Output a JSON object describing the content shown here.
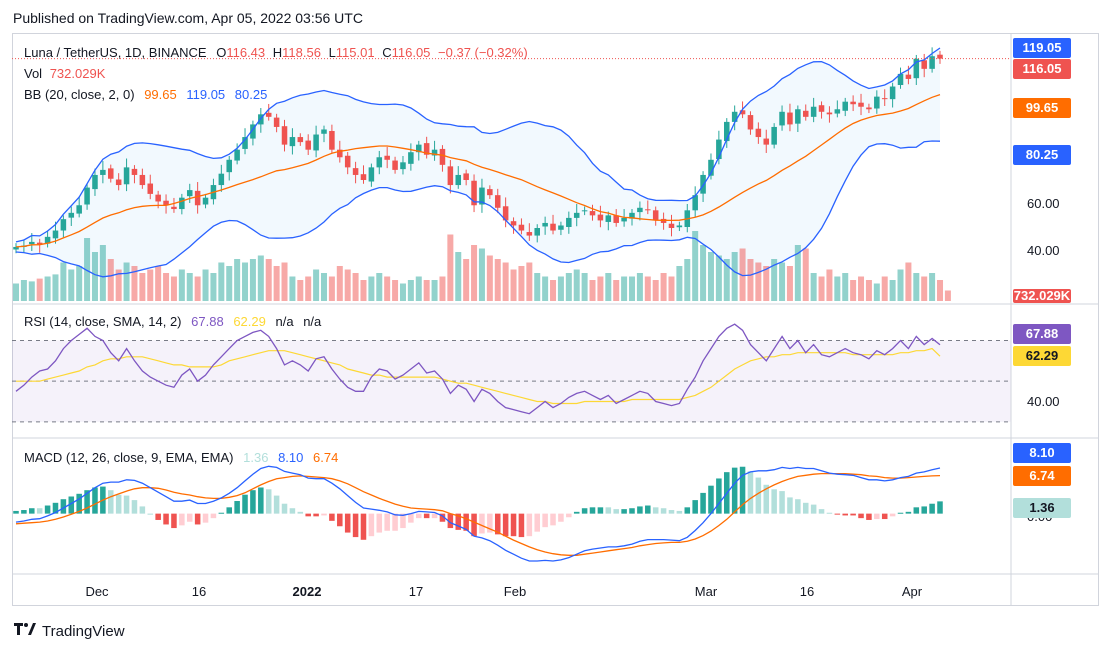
{
  "published": "Published on TradingView.com, Apr 05, 2022 03:56 UTC",
  "legend": {
    "symbol": "Luna / TetherUS, 1D, BINANCE",
    "o_label": "O",
    "o_val": "116.43",
    "h_label": "H",
    "h_val": "118.56",
    "l_label": "L",
    "l_val": "115.01",
    "c_label": "C",
    "c_val": "116.05",
    "change": "−0.37 (−0.32%)",
    "vol_label": "Vol",
    "vol_val": "732.029K",
    "bb_label": "BB (20, close, 2, 0)",
    "bb_mid": "99.65",
    "bb_up": "119.05",
    "bb_low": "80.25",
    "rsi_label": "RSI (14, close, SMA, 14, 2)",
    "rsi_val": "67.88",
    "rsi_ma": "62.29",
    "rsi_na1": "n/a",
    "rsi_na2": "n/a",
    "macd_label": "MACD (12, 26, close, 9, EMA, EMA)",
    "macd_hist": "1.36",
    "macd_val": "8.10",
    "macd_sig": "6.74"
  },
  "price_axis": [
    "60.00",
    "40.00"
  ],
  "rsi_axis": [
    "40.00"
  ],
  "macd_axis_partial": "0.00",
  "tags": {
    "bb_up": "119.05",
    "close": "116.05",
    "bb_mid": "99.65",
    "bb_low": "80.25",
    "vol": "732.029K",
    "rsi": "67.88",
    "rsi_ma": "62.29",
    "macd": "8.10",
    "signal": "6.74",
    "hist": "1.36"
  },
  "x_labels": [
    "Dec",
    "16",
    "2022",
    "17",
    "Feb",
    "Mar",
    "16",
    "Apr"
  ],
  "brand": "TradingView",
  "colors": {
    "up": "#26a69a",
    "down": "#ef5350",
    "bb_band": "#2962ff",
    "bb_basis": "#ff6d00",
    "rsi": "#7e57c2",
    "rsi_ma": "#fdd835",
    "macd": "#2962ff",
    "signal": "#ff6d00",
    "hist_up": "#26a69a",
    "hist_down": "#ef5350"
  },
  "chart_data": [
    {
      "type": "candlestick",
      "title": "Luna / TetherUS, 1D, BINANCE",
      "x_start": "2021-11-20",
      "x_end": "2022-04-05",
      "ylim": [
        30,
        125
      ],
      "closes": [
        41.5,
        42,
        43.5,
        42.5,
        45.5,
        48,
        52.5,
        55,
        58,
        65,
        70,
        72,
        68.5,
        66,
        73,
        70,
        66,
        62.5,
        59.5,
        58,
        56.5,
        61,
        64,
        58,
        61,
        66,
        70.5,
        76,
        80,
        85,
        90,
        94,
        93,
        89,
        82,
        85,
        83,
        80,
        86,
        88,
        80,
        77,
        73,
        70,
        68,
        73,
        77,
        76,
        72,
        75,
        79,
        82,
        78,
        80,
        74,
        66,
        70,
        68,
        58,
        65,
        62,
        57,
        52,
        50,
        48,
        46,
        49,
        51,
        48,
        50,
        53,
        55,
        56,
        54,
        52,
        54,
        51,
        53,
        55,
        57,
        56,
        52,
        51,
        49,
        50,
        56,
        62,
        70,
        76,
        84,
        91,
        95,
        94,
        88,
        85,
        82,
        89,
        95,
        90,
        96,
        93,
        97,
        95,
        94,
        96,
        99,
        98,
        97,
        96,
        101,
        100,
        105,
        110,
        108,
        116,
        112,
        117,
        116.05
      ],
      "volume_rel": [
        0.25,
        0.3,
        0.28,
        0.32,
        0.35,
        0.38,
        0.55,
        0.45,
        0.5,
        0.9,
        0.7,
        0.8,
        0.6,
        0.45,
        0.55,
        0.5,
        0.4,
        0.45,
        0.5,
        0.4,
        0.35,
        0.45,
        0.4,
        0.35,
        0.45,
        0.4,
        0.55,
        0.5,
        0.6,
        0.55,
        0.6,
        0.65,
        0.6,
        0.5,
        0.55,
        0.35,
        0.3,
        0.35,
        0.45,
        0.4,
        0.35,
        0.5,
        0.45,
        0.4,
        0.3,
        0.35,
        0.4,
        0.35,
        0.3,
        0.25,
        0.3,
        0.35,
        0.3,
        0.3,
        0.35,
        0.95,
        0.7,
        0.6,
        0.8,
        0.75,
        0.65,
        0.6,
        0.55,
        0.45,
        0.5,
        0.55,
        0.4,
        0.35,
        0.3,
        0.35,
        0.4,
        0.45,
        0.4,
        0.3,
        0.35,
        0.4,
        0.3,
        0.35,
        0.35,
        0.4,
        0.35,
        0.3,
        0.4,
        0.35,
        0.5,
        0.6,
        1.0,
        0.8,
        0.7,
        0.65,
        0.6,
        0.7,
        0.75,
        0.6,
        0.55,
        0.5,
        0.6,
        0.55,
        0.5,
        0.8,
        0.75,
        0.4,
        0.35,
        0.45,
        0.35,
        0.4,
        0.3,
        0.35,
        0.3,
        0.25,
        0.35,
        0.3,
        0.45,
        0.55,
        0.4,
        0.35,
        0.4,
        0.3,
        0.15
      ]
    },
    {
      "type": "line",
      "title": "RSI (14, close, SMA, 14, 2)",
      "ylim": [
        25,
        85
      ],
      "levels": [
        70,
        50,
        30
      ],
      "series": [
        {
          "name": "RSI",
          "values": [
            45,
            48,
            52,
            55,
            56,
            60,
            66,
            70,
            73,
            76,
            72,
            70,
            64,
            60,
            66,
            60,
            55,
            52,
            50,
            48,
            47,
            53,
            56,
            50,
            53,
            58,
            62,
            66,
            70,
            72,
            74,
            75,
            72,
            66,
            58,
            60,
            58,
            55,
            61,
            62,
            56,
            51,
            47,
            45,
            45,
            52,
            56,
            55,
            51,
            53,
            56,
            59,
            54,
            55,
            51,
            44,
            48,
            46,
            40,
            46,
            44,
            40,
            37,
            36,
            35,
            34,
            37,
            40,
            37,
            39,
            42,
            44,
            45,
            43,
            41,
            43,
            39,
            41,
            43,
            45,
            44,
            40,
            39,
            38,
            39,
            46,
            52,
            60,
            66,
            72,
            76,
            78,
            75,
            68,
            64,
            60,
            66,
            72,
            66,
            70,
            64,
            68,
            63,
            62,
            64,
            66,
            64,
            63,
            61,
            65,
            63,
            66,
            70,
            66,
            72,
            68,
            71,
            67.88
          ]
        },
        {
          "name": "MA",
          "values": [
            50,
            50,
            50,
            50,
            51,
            52,
            53,
            54,
            55,
            57,
            58,
            60,
            61,
            61,
            62,
            62,
            62,
            61,
            60,
            59,
            58,
            58,
            57,
            57,
            57,
            57,
            58,
            60,
            61,
            62,
            63,
            64,
            65,
            65,
            65,
            64,
            63,
            62,
            61,
            60,
            59,
            58,
            56,
            55,
            54,
            53,
            53,
            52,
            52,
            52,
            52,
            52,
            52,
            52,
            51,
            50,
            49,
            49,
            48,
            47,
            46,
            45,
            44,
            43,
            42,
            41,
            40,
            40,
            39,
            39,
            39,
            39,
            40,
            40,
            40,
            40,
            40,
            40,
            41,
            41,
            41,
            41,
            41,
            41,
            41,
            42,
            43,
            45,
            47,
            50,
            53,
            56,
            58,
            60,
            61,
            62,
            62,
            63,
            63,
            64,
            64,
            64,
            64,
            64,
            64,
            64,
            63,
            63,
            63,
            63,
            63,
            63,
            64,
            64,
            65,
            65,
            66,
            62.29
          ]
        }
      ]
    },
    {
      "type": "line",
      "title": "MACD (12, 26, close, 9, EMA, EMA)",
      "ylim": [
        -10,
        12
      ],
      "series": [
        {
          "name": "MACD",
          "values": [
            -1.5,
            -1.3,
            -1,
            -0.9,
            -0.4,
            0.2,
            1,
            1.8,
            2.6,
            3.6,
            4.6,
            5.4,
            5.6,
            5.6,
            6,
            5.9,
            5.4,
            4.6,
            3.8,
            3,
            2.2,
            2.2,
            2.4,
            1.8,
            1.8,
            2.2,
            2.8,
            3.6,
            4.6,
            5.8,
            7,
            8,
            8.4,
            8.2,
            7.5,
            7.2,
            6.9,
            6.3,
            6.2,
            6.2,
            5.4,
            4.4,
            3.2,
            2,
            1,
            0.8,
            0.6,
            0.3,
            -0.2,
            -0.3,
            0,
            0.4,
            0.3,
            0.2,
            -0.4,
            -1.6,
            -2.2,
            -2.8,
            -4,
            -4.3,
            -4.8,
            -5.6,
            -6.5,
            -7.2,
            -7.9,
            -8.4,
            -8.4,
            -8.3,
            -8.4,
            -8.2,
            -7.8,
            -7.2,
            -6.6,
            -6.3,
            -6.1,
            -5.9,
            -5.9,
            -5.7,
            -5.4,
            -4.9,
            -4.6,
            -4.6,
            -4.6,
            -4.7,
            -4.8,
            -4.2,
            -3,
            -1.6,
            0,
            1.8,
            3.6,
            5.4,
            6.8,
            7.4,
            7.6,
            7.6,
            7.8,
            8.2,
            8,
            8.2,
            8,
            8,
            7.6,
            7.2,
            7,
            6.9,
            6.8,
            6.4,
            6,
            6,
            5.8,
            6,
            6.4,
            6.6,
            7.2,
            7.4,
            7.8,
            8.1
          ]
        },
        {
          "name": "Signal",
          "values": [
            -1.8,
            -1.7,
            -1.6,
            -1.5,
            -1.3,
            -1,
            -0.6,
            -0.1,
            0.4,
            1,
            1.7,
            2.4,
            3,
            3.5,
            4,
            4.4,
            4.6,
            4.6,
            4.5,
            4.2,
            3.8,
            3.5,
            3.3,
            3,
            2.8,
            2.7,
            2.7,
            2.9,
            3.2,
            3.7,
            4.4,
            5.1,
            5.7,
            6.2,
            6.4,
            6.6,
            6.7,
            6.6,
            6.5,
            6.4,
            6.2,
            5.8,
            5.3,
            4.6,
            3.9,
            3.3,
            2.7,
            2.2,
            1.7,
            1.3,
            1,
            0.9,
            0.8,
            0.7,
            0.5,
            0,
            -0.4,
            -0.9,
            -1.5,
            -2.1,
            -2.7,
            -3.3,
            -4,
            -4.7,
            -5.3,
            -5.9,
            -6.4,
            -6.8,
            -7.1,
            -7.3,
            -7.4,
            -7.4,
            -7.2,
            -7,
            -6.8,
            -6.6,
            -6.4,
            -6.2,
            -6,
            -5.7,
            -5.5,
            -5.3,
            -5.2,
            -5.1,
            -5.1,
            -4.9,
            -4.5,
            -3.9,
            -3.1,
            -2.1,
            -1,
            0.3,
            1.6,
            2.7,
            3.6,
            4.4,
            5.1,
            5.7,
            6.2,
            6.6,
            6.8,
            7,
            7.1,
            7.1,
            7.1,
            7.1,
            7,
            6.9,
            6.7,
            6.6,
            6.4,
            6.3,
            6.3,
            6.4,
            6.5,
            6.6,
            6.7,
            6.74
          ]
        }
      ]
    }
  ]
}
